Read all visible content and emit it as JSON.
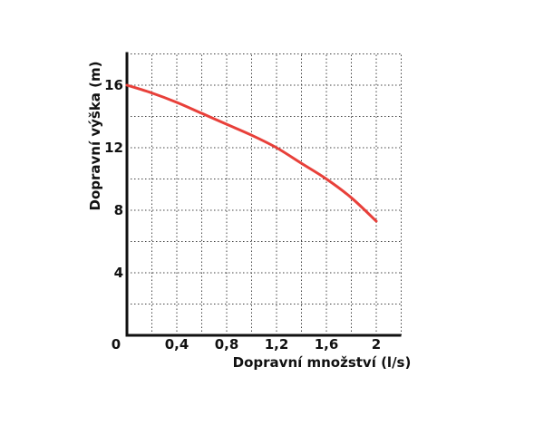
{
  "chart_data": {
    "type": "line",
    "title": "",
    "xlabel": "Dopravní množství (l/s)",
    "ylabel": "Dopravní výška (m)",
    "xlim": [
      0,
      2.2
    ],
    "ylim": [
      0,
      18
    ],
    "x_ticks": [
      "0",
      "0,4",
      "0,8",
      "1,2",
      "1,6",
      "2"
    ],
    "x_tick_values": [
      0,
      0.4,
      0.8,
      1.2,
      1.6,
      2.0
    ],
    "y_ticks": [
      "4",
      "8",
      "12",
      "16"
    ],
    "y_tick_values": [
      4,
      8,
      12,
      16
    ],
    "grid": true,
    "series": [
      {
        "color": "#e8403a",
        "x": [
          0,
          0.2,
          0.4,
          0.6,
          0.8,
          1.0,
          1.2,
          1.4,
          1.6,
          1.8,
          2.0
        ],
        "y": [
          16.0,
          15.5,
          14.9,
          14.2,
          13.5,
          12.8,
          12.0,
          11.0,
          10.0,
          8.8,
          7.3
        ]
      }
    ]
  }
}
